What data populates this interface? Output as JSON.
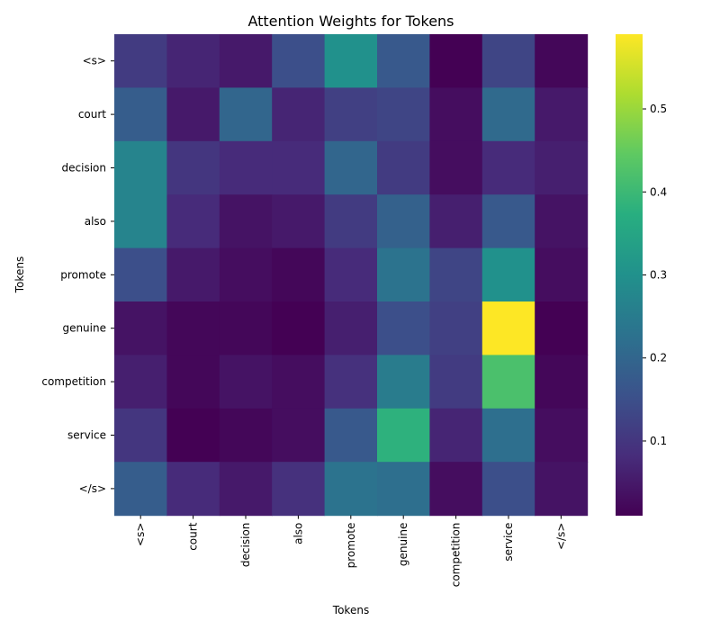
{
  "chart_data": {
    "type": "heatmap",
    "title": "Attention Weights for Tokens",
    "xlabel": "Tokens",
    "ylabel": "Tokens",
    "x_tokens": [
      "<s>",
      "court",
      "decision",
      "also",
      "promote",
      "genuine",
      "competition",
      "service",
      "</s>"
    ],
    "y_tokens": [
      "<s>",
      "court",
      "decision",
      "also",
      "promote",
      "genuine",
      "competition",
      "service",
      "</s>"
    ],
    "values": [
      [
        0.11,
        0.07,
        0.05,
        0.15,
        0.3,
        0.17,
        0.01,
        0.13,
        0.02
      ],
      [
        0.18,
        0.05,
        0.2,
        0.07,
        0.12,
        0.13,
        0.03,
        0.21,
        0.05
      ],
      [
        0.27,
        0.1,
        0.08,
        0.08,
        0.2,
        0.11,
        0.03,
        0.08,
        0.06
      ],
      [
        0.27,
        0.08,
        0.04,
        0.05,
        0.11,
        0.19,
        0.06,
        0.17,
        0.04
      ],
      [
        0.15,
        0.05,
        0.03,
        0.02,
        0.08,
        0.23,
        0.13,
        0.3,
        0.03
      ],
      [
        0.04,
        0.02,
        0.02,
        0.01,
        0.06,
        0.15,
        0.12,
        0.59,
        0.01
      ],
      [
        0.06,
        0.02,
        0.04,
        0.03,
        0.09,
        0.25,
        0.11,
        0.42,
        0.02
      ],
      [
        0.1,
        0.01,
        0.02,
        0.03,
        0.17,
        0.38,
        0.07,
        0.22,
        0.03
      ],
      [
        0.18,
        0.08,
        0.05,
        0.09,
        0.23,
        0.22,
        0.03,
        0.15,
        0.04
      ]
    ],
    "colormap": "viridis",
    "vmin": 0.01,
    "vmax": 0.59,
    "colorbar_ticks": [
      0.1,
      0.2,
      0.3,
      0.4,
      0.5
    ],
    "colorbar_tick_labels": [
      "0.1",
      "0.2",
      "0.3",
      "0.4",
      "0.5"
    ],
    "grid": false
  }
}
